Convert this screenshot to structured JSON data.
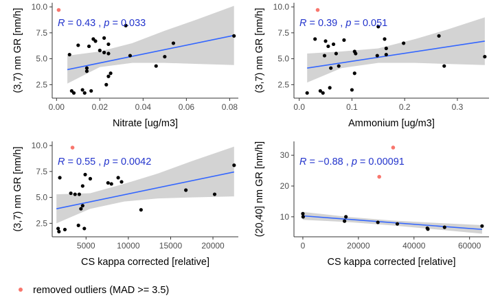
{
  "colors": {
    "point": "#000000",
    "outlier": "#f8766d",
    "line": "#3366ff",
    "band": "#d3d3d3",
    "stat": "#2233cc"
  },
  "legend": {
    "label": "removed outliers (MAD >= 3.5)"
  },
  "chart_data": [
    {
      "type": "scatter",
      "xlabel": "Nitrate [ug/m3]",
      "ylabel": "(3,7) nm GR [nm/h]",
      "xlim": [
        -0.002,
        0.084
      ],
      "ylim": [
        1.2,
        10.4
      ],
      "xticks": [
        0.0,
        0.02,
        0.04,
        0.06,
        0.08
      ],
      "xtick_labels": [
        "0.00",
        "0.02",
        "0.04",
        "0.06",
        "0.08"
      ],
      "yticks": [
        2.5,
        5.0,
        7.5,
        10.0
      ],
      "ytick_labels": [
        "2.5",
        "5.0",
        "7.5",
        "10.0"
      ],
      "annotation": {
        "r": "0.43",
        "p": "0.033"
      },
      "points": [
        [
          0.006,
          5.4
        ],
        [
          0.007,
          1.9
        ],
        [
          0.008,
          1.7
        ],
        [
          0.01,
          6.3
        ],
        [
          0.012,
          2.0
        ],
        [
          0.013,
          1.7
        ],
        [
          0.014,
          4.1
        ],
        [
          0.014,
          3.8
        ],
        [
          0.015,
          6.2
        ],
        [
          0.016,
          1.9
        ],
        [
          0.017,
          6.9
        ],
        [
          0.018,
          6.7
        ],
        [
          0.02,
          5.8
        ],
        [
          0.022,
          7.0
        ],
        [
          0.022,
          5.6
        ],
        [
          0.023,
          2.5
        ],
        [
          0.024,
          6.4
        ],
        [
          0.024,
          3.3
        ],
        [
          0.024,
          5.5
        ],
        [
          0.025,
          3.6
        ],
        [
          0.032,
          8.2
        ],
        [
          0.034,
          5.3
        ],
        [
          0.046,
          4.3
        ],
        [
          0.05,
          5.2
        ],
        [
          0.054,
          6.5
        ],
        [
          0.082,
          7.2
        ]
      ],
      "outliers": [
        [
          0.001,
          9.7
        ]
      ],
      "fit": {
        "x": [
          0.005,
          0.082
        ],
        "y": [
          3.95,
          7.25
        ]
      },
      "band": {
        "x": [
          0.005,
          0.02,
          0.035,
          0.05,
          0.065,
          0.082
        ],
        "lower": [
          2.6,
          4.2,
          4.6,
          4.6,
          4.5,
          4.4
        ],
        "upper": [
          5.3,
          5.7,
          6.5,
          7.7,
          8.8,
          10.1
        ]
      }
    },
    {
      "type": "scatter",
      "xlabel": "Ammonium [ug/m3]",
      "ylabel": "(3,7) nm GR [nm/h]",
      "xlim": [
        -0.01,
        0.36
      ],
      "ylim": [
        1.2,
        10.4
      ],
      "xticks": [
        0.0,
        0.1,
        0.2,
        0.3
      ],
      "xtick_labels": [
        "0.0",
        "0.1",
        "0.2",
        "0.3"
      ],
      "yticks": [
        2.5,
        5.0,
        7.5,
        10.0
      ],
      "ytick_labels": [
        "2.5",
        "5.0",
        "7.5",
        "10.0"
      ],
      "annotation": {
        "r": "0.39",
        "p": "0.051"
      },
      "points": [
        [
          0.015,
          1.7
        ],
        [
          0.03,
          6.9
        ],
        [
          0.04,
          1.9
        ],
        [
          0.045,
          1.7
        ],
        [
          0.048,
          5.3
        ],
        [
          0.05,
          6.7
        ],
        [
          0.055,
          6.2
        ],
        [
          0.058,
          2.2
        ],
        [
          0.06,
          4.1
        ],
        [
          0.065,
          6.4
        ],
        [
          0.07,
          5.5
        ],
        [
          0.075,
          4.3
        ],
        [
          0.085,
          6.8
        ],
        [
          0.1,
          2.0
        ],
        [
          0.105,
          3.6
        ],
        [
          0.105,
          5.7
        ],
        [
          0.107,
          5.5
        ],
        [
          0.148,
          5.3
        ],
        [
          0.15,
          8.1
        ],
        [
          0.162,
          6.9
        ],
        [
          0.165,
          5.4
        ],
        [
          0.165,
          6.0
        ],
        [
          0.198,
          6.5
        ],
        [
          0.265,
          7.2
        ],
        [
          0.275,
          4.3
        ],
        [
          0.352,
          5.2
        ]
      ],
      "outliers": [
        [
          0.035,
          9.7
        ]
      ],
      "fit": {
        "x": [
          0.015,
          0.352
        ],
        "y": [
          4.1,
          6.7
        ]
      },
      "band": {
        "x": [
          0.015,
          0.08,
          0.15,
          0.22,
          0.28,
          0.352
        ],
        "lower": [
          2.7,
          4.1,
          4.6,
          4.6,
          4.5,
          4.4
        ],
        "upper": [
          5.5,
          5.7,
          6.0,
          6.9,
          7.8,
          9.0
        ]
      }
    },
    {
      "type": "scatter",
      "xlabel": "CS kappa corrected [relative]",
      "ylabel": "(3,7) nm GR [nm/h]",
      "xlim": [
        1000,
        23000
      ],
      "ylim": [
        1.2,
        10.4
      ],
      "xticks": [
        5000,
        10000,
        15000,
        20000
      ],
      "xtick_labels": [
        "5000",
        "10000",
        "15000",
        "20000"
      ],
      "yticks": [
        2.5,
        5.0,
        7.5,
        10.0
      ],
      "ytick_labels": [
        "2.5",
        "5.0",
        "7.5",
        "10.0"
      ],
      "annotation": {
        "r": "0.55",
        "p": "0.0042"
      },
      "points": [
        [
          1700,
          2.0
        ],
        [
          1800,
          1.7
        ],
        [
          1900,
          6.9
        ],
        [
          2500,
          1.9
        ],
        [
          3200,
          5.4
        ],
        [
          3700,
          5.3
        ],
        [
          4100,
          2.3
        ],
        [
          4200,
          5.3
        ],
        [
          4400,
          3.9
        ],
        [
          4600,
          4.2
        ],
        [
          4600,
          6.1
        ],
        [
          4800,
          2.0
        ],
        [
          4900,
          7.2
        ],
        [
          5500,
          6.8
        ],
        [
          7600,
          6.4
        ],
        [
          8000,
          6.3
        ],
        [
          8800,
          6.9
        ],
        [
          9200,
          6.5
        ],
        [
          11500,
          3.8
        ],
        [
          16800,
          5.7
        ],
        [
          20200,
          5.3
        ],
        [
          22500,
          8.1
        ]
      ],
      "outliers": [
        [
          3400,
          9.8
        ]
      ],
      "fit": {
        "x": [
          1500,
          22500
        ],
        "y": [
          3.9,
          7.45
        ]
      },
      "band": {
        "x": [
          1500,
          5500,
          9500,
          13500,
          17500,
          22500
        ],
        "lower": [
          2.5,
          3.9,
          4.6,
          4.9,
          5.0,
          5.1
        ],
        "upper": [
          5.3,
          5.4,
          6.3,
          7.3,
          8.5,
          9.9
        ]
      }
    },
    {
      "type": "scatter",
      "xlabel": "CS kappa corrected [relative]",
      "ylabel": "(20,40] nm GR [nm/h]",
      "xlim": [
        -3200,
        67000
      ],
      "ylim": [
        3.5,
        34.5
      ],
      "xticks": [
        0,
        20000,
        40000,
        60000
      ],
      "xtick_labels": [
        "0",
        "20000",
        "40000",
        "60000"
      ],
      "yticks": [
        10,
        20,
        30
      ],
      "ytick_labels": [
        "10",
        "20",
        "30"
      ],
      "annotation": {
        "r": "−0.88",
        "p": "0.00091"
      },
      "points": [
        [
          0,
          11.0
        ],
        [
          100,
          10.0
        ],
        [
          15000,
          8.6
        ],
        [
          15500,
          10.0
        ],
        [
          27000,
          8.2
        ],
        [
          34000,
          7.7
        ],
        [
          44800,
          6.3
        ],
        [
          45000,
          6.0
        ],
        [
          51000,
          6.6
        ],
        [
          64500,
          7.0
        ]
      ],
      "outliers": [
        [
          27500,
          23.0
        ],
        [
          32500,
          32.5
        ]
      ],
      "fit": {
        "x": [
          0,
          64500
        ],
        "y": [
          10.3,
          5.9
        ]
      },
      "band": {
        "x": [
          0,
          16000,
          32000,
          48000,
          64500
        ],
        "lower": [
          9.0,
          8.3,
          7.2,
          5.9,
          4.5
        ],
        "upper": [
          11.6,
          10.0,
          8.8,
          8.0,
          7.3
        ]
      }
    }
  ]
}
